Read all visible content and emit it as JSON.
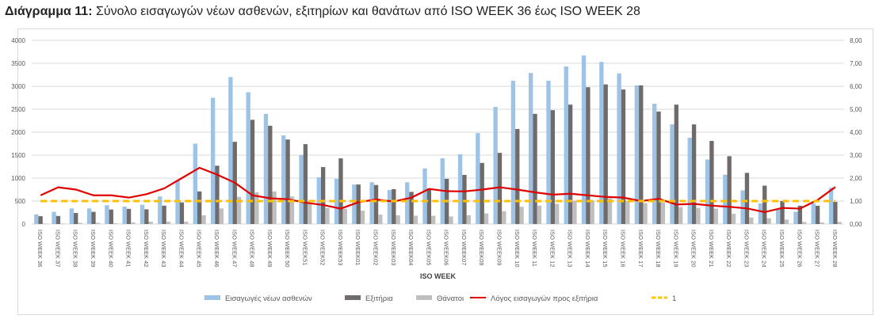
{
  "title": {
    "prefix": "Διάγραμμα 11:",
    "text": " Σύνολο εισαγωγών νέων ασθενών, εξιτηρίων και θανάτων από ISO WEEK 36 έως ISO WEEK 28"
  },
  "chart_data": {
    "type": "bar+line",
    "xlabel": "ISO WEEK",
    "ylim_left": [
      0,
      4000
    ],
    "yticks_left": [
      "0",
      "500",
      "1000",
      "1500",
      "2000",
      "2500",
      "3000",
      "3500",
      "4000"
    ],
    "ylim_right": [
      0,
      8
    ],
    "yticks_right": [
      "0,00",
      "1,00",
      "2,00",
      "3,00",
      "4,00",
      "5,00",
      "6,00",
      "7,00",
      "8,00"
    ],
    "grid": true,
    "legend_position": "bottom",
    "categories": [
      "ISO WEEK 36",
      "ISO WEEK 37",
      "ISO WEEK 38",
      "ISO WEEK 39",
      "ISO WEEK 40",
      "ISO WEEK 41",
      "ISO WEEK 42",
      "ISO WEEK 43",
      "ISO WEEK 44",
      "ISO WEEK 45",
      "ISO WEEK 46",
      "ISO WEEK 47",
      "ISO WEEK 48",
      "ISO WEEK 49",
      "ISO WEEK 50",
      "ISO WEEK51",
      "ISO WEEK52",
      "ISO WEEK53",
      "ISO WEEK01",
      "ISO WEEK02",
      "ISO WEEK03",
      "ISO WEEK04",
      "ISO WEEK05",
      "ISO WEEK06",
      "ISO WEEK07",
      "ISO WEEK08",
      "ISO WEEK09",
      "ISO WEEK 10",
      "ISO WEEK 11",
      "ISO WEEK 12",
      "ISO WEEK 13",
      "ISO WEEK 14",
      "ISO WEEK 15",
      "ISO WEEK 16",
      "ISO WEEK 17",
      "ISO WEEK 18",
      "ISO WEEK 19",
      "ISO WEEK 20",
      "ISO WEEK 21",
      "ISO WEEK 22",
      "ISO WEEK 23",
      "ISO WEEK 24",
      "ISO WEEK 25",
      "ISO WEEK 26",
      "ISO WEEK 27",
      "ISO WEEK 28"
    ],
    "series": [
      {
        "name": "Εισαγωγές νέων ασθενών",
        "type": "bar",
        "axis": "left",
        "color": "#9dc3e6",
        "values": [
          210,
          265,
          340,
          340,
          410,
          380,
          420,
          600,
          960,
          1750,
          2750,
          3200,
          2870,
          2400,
          1930,
          1500,
          1017,
          985,
          860,
          910,
          740,
          910,
          1210,
          1430,
          1520,
          1980,
          2550,
          3120,
          3290,
          3120,
          3430,
          3670,
          3530,
          3280,
          3020,
          2620,
          2170,
          1880,
          1403,
          1074,
          733,
          449,
          324,
          267,
          449,
          790
        ]
      },
      {
        "name": "Εξιτήρια",
        "type": "bar",
        "axis": "left",
        "color": "#6f6b6b",
        "values": [
          170,
          175,
          240,
          265,
          315,
          330,
          320,
          400,
          470,
          710,
          1270,
          1790,
          2270,
          2140,
          1840,
          1740,
          1240,
          1430,
          860,
          850,
          760,
          700,
          770,
          985,
          1070,
          1330,
          1550,
          2070,
          2400,
          2480,
          2600,
          2980,
          3040,
          2930,
          3020,
          2450,
          2600,
          2170,
          1810,
          1477,
          1114,
          835,
          500,
          398,
          398,
          483
        ]
      },
      {
        "name": "Θάνατοι",
        "type": "bar",
        "axis": "left",
        "color": "#bfbfbf",
        "values": [
          10,
          10,
          25,
          25,
          15,
          35,
          50,
          50,
          50,
          190,
          340,
          590,
          690,
          710,
          600,
          450,
          350,
          330,
          290,
          205,
          190,
          180,
          180,
          165,
          190,
          230,
          280,
          375,
          400,
          440,
          510,
          510,
          560,
          510,
          455,
          465,
          370,
          350,
          335,
          222,
          142,
          125,
          97,
          45,
          34,
          45
        ]
      },
      {
        "name": "Λόγος εισαγωγών προς εξιτήρια",
        "type": "line",
        "axis": "right",
        "color": "#e00000",
        "values": [
          1.25,
          1.6,
          1.5,
          1.25,
          1.25,
          1.15,
          1.3,
          1.55,
          2.0,
          2.45,
          2.15,
          1.8,
          1.25,
          1.12,
          1.08,
          0.93,
          0.83,
          0.67,
          0.95,
          1.07,
          0.98,
          1.15,
          1.53,
          1.43,
          1.42,
          1.5,
          1.6,
          1.5,
          1.38,
          1.28,
          1.32,
          1.25,
          1.18,
          1.15,
          1.0,
          1.1,
          0.85,
          0.88,
          0.8,
          0.75,
          0.68,
          0.52,
          0.7,
          0.67,
          1.05,
          1.61
        ]
      },
      {
        "name": "1",
        "type": "line-dashed",
        "axis": "right",
        "color": "#ffc000",
        "value": 1
      }
    ]
  }
}
